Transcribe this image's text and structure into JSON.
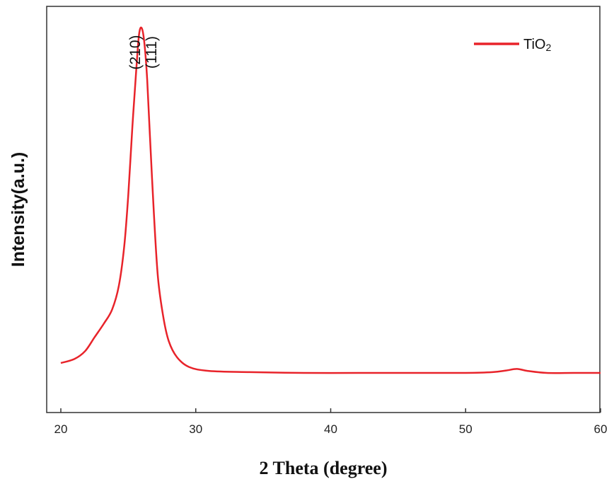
{
  "chart_data": {
    "type": "line",
    "xlabel": "2 Theta (degree)",
    "ylabel": "Intensity(a.u.)",
    "xlim": [
      20,
      60
    ],
    "ylim": [
      0,
      1
    ],
    "xticks": [
      "20",
      "30",
      "40",
      "50",
      "60"
    ],
    "series": [
      {
        "name": "TiO",
        "name_subscript": "2",
        "color": "#e8232a",
        "x": [
          20.0,
          21.0,
          21.8,
          22.5,
          23.2,
          23.8,
          24.3,
          24.7,
          25.0,
          25.3,
          25.6,
          25.8,
          26.0,
          26.2,
          26.4,
          26.6,
          26.9,
          27.2,
          27.6,
          28.0,
          28.6,
          29.5,
          31.0,
          34.0,
          38.0,
          42.0,
          46.0,
          50.0,
          52.0,
          53.0,
          53.8,
          54.6,
          56.0,
          58.0,
          60.0
        ],
        "y": [
          0.125,
          0.135,
          0.155,
          0.19,
          0.225,
          0.26,
          0.32,
          0.42,
          0.55,
          0.72,
          0.87,
          0.955,
          0.97,
          0.93,
          0.84,
          0.7,
          0.5,
          0.34,
          0.24,
          0.18,
          0.14,
          0.115,
          0.105,
          0.102,
          0.1,
          0.1,
          0.1,
          0.1,
          0.102,
          0.106,
          0.11,
          0.105,
          0.1,
          0.1,
          0.1
        ]
      }
    ],
    "annotations": [
      {
        "text": "(210)",
        "x": 25.5
      },
      {
        "text": "(111)",
        "x": 26.7
      }
    ],
    "legend_position": "top-right",
    "grid": false
  }
}
